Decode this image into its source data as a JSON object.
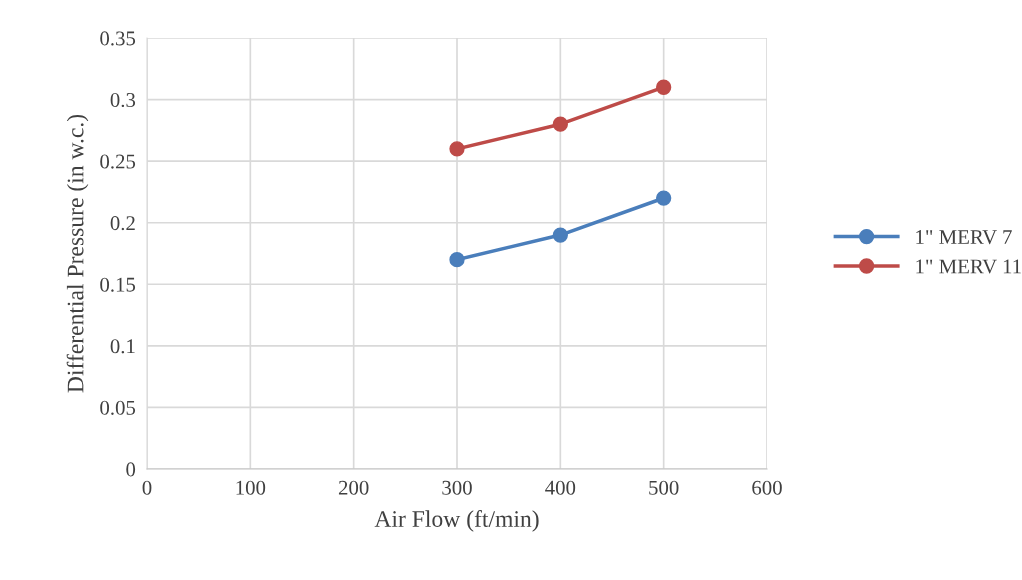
{
  "chart_data": {
    "type": "line",
    "xlabel": "Air Flow (ft/min)",
    "ylabel": "Differential Pressure (in w.c.)",
    "series": [
      {
        "name": "1\" MERV 7",
        "color": "#4a7ebb",
        "x": [
          300,
          400,
          500
        ],
        "values": [
          0.17,
          0.19,
          0.22
        ]
      },
      {
        "name": "1\" MERV 11",
        "color": "#be4b48",
        "x": [
          300,
          400,
          500
        ],
        "values": [
          0.26,
          0.28,
          0.31
        ]
      }
    ],
    "xlim": [
      0,
      600
    ],
    "xticks": [
      0,
      100,
      200,
      300,
      400,
      500,
      600
    ],
    "ylim": [
      0,
      0.35
    ],
    "yticks": [
      0,
      {
        "value": 0.05,
        "label": "0.05"
      },
      {
        "value": 0.1,
        "label": "0.1"
      },
      {
        "value": 0.15,
        "label": "0.15"
      },
      {
        "value": 0.2,
        "label": "0.2"
      },
      {
        "value": 0.25,
        "label": "0.25"
      },
      {
        "value": 0.3,
        "label": "0.3"
      },
      {
        "value": 0.35,
        "label": "0.35"
      }
    ],
    "grid": true,
    "legend": "right",
    "marker": "circle",
    "line_style": "solid"
  }
}
